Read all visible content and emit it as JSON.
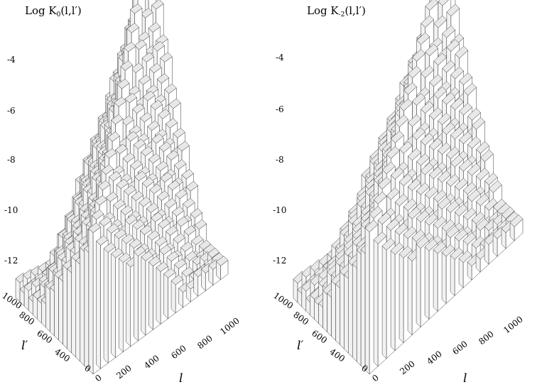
{
  "chart_data": [
    {
      "type": "surface3d",
      "title": "Log K₀(l,l′)",
      "title_parts": {
        "prefix": "Log K",
        "subscript": "0",
        "args": "(l,l′)"
      },
      "zticks": [
        "-4",
        "-6",
        "-8",
        "-10",
        "-12"
      ],
      "zlim": [
        -13.5,
        -3
      ],
      "lprime_label": "l′",
      "lprime_ticks": [
        "0",
        "200",
        "400",
        "600",
        "800",
        "1000"
      ],
      "l_label": "l",
      "l_ticks": [
        "0",
        "200",
        "400",
        "600",
        "800",
        "1000"
      ],
      "surface": {
        "description_levels": {
          "peak_at_l_eq_lprime_1000": -2.6,
          "floor_level": -8.0,
          "far_off_diagonal_min": -13.0
        }
      }
    },
    {
      "type": "surface3d",
      "title": "Log K₋₂(l,l′)",
      "title_parts": {
        "prefix": "Log K",
        "subscript": "-2",
        "args": "(l,l′)"
      },
      "zticks": [
        "-4",
        "-6",
        "-8",
        "-10",
        "-12"
      ],
      "zlim": [
        -13.5,
        -3
      ],
      "lprime_label": "l′",
      "lprime_ticks": [
        "0",
        "200",
        "400",
        "600",
        "800",
        "1000"
      ],
      "l_label": "l",
      "l_ticks": [
        "0",
        "200",
        "400",
        "600",
        "800",
        "1000"
      ],
      "surface": {
        "description_levels": {
          "peak_at_l_eq_lprime_1000": -5.2,
          "floor_level": -8.0,
          "far_off_diagonal_min": -13.0
        }
      }
    }
  ]
}
